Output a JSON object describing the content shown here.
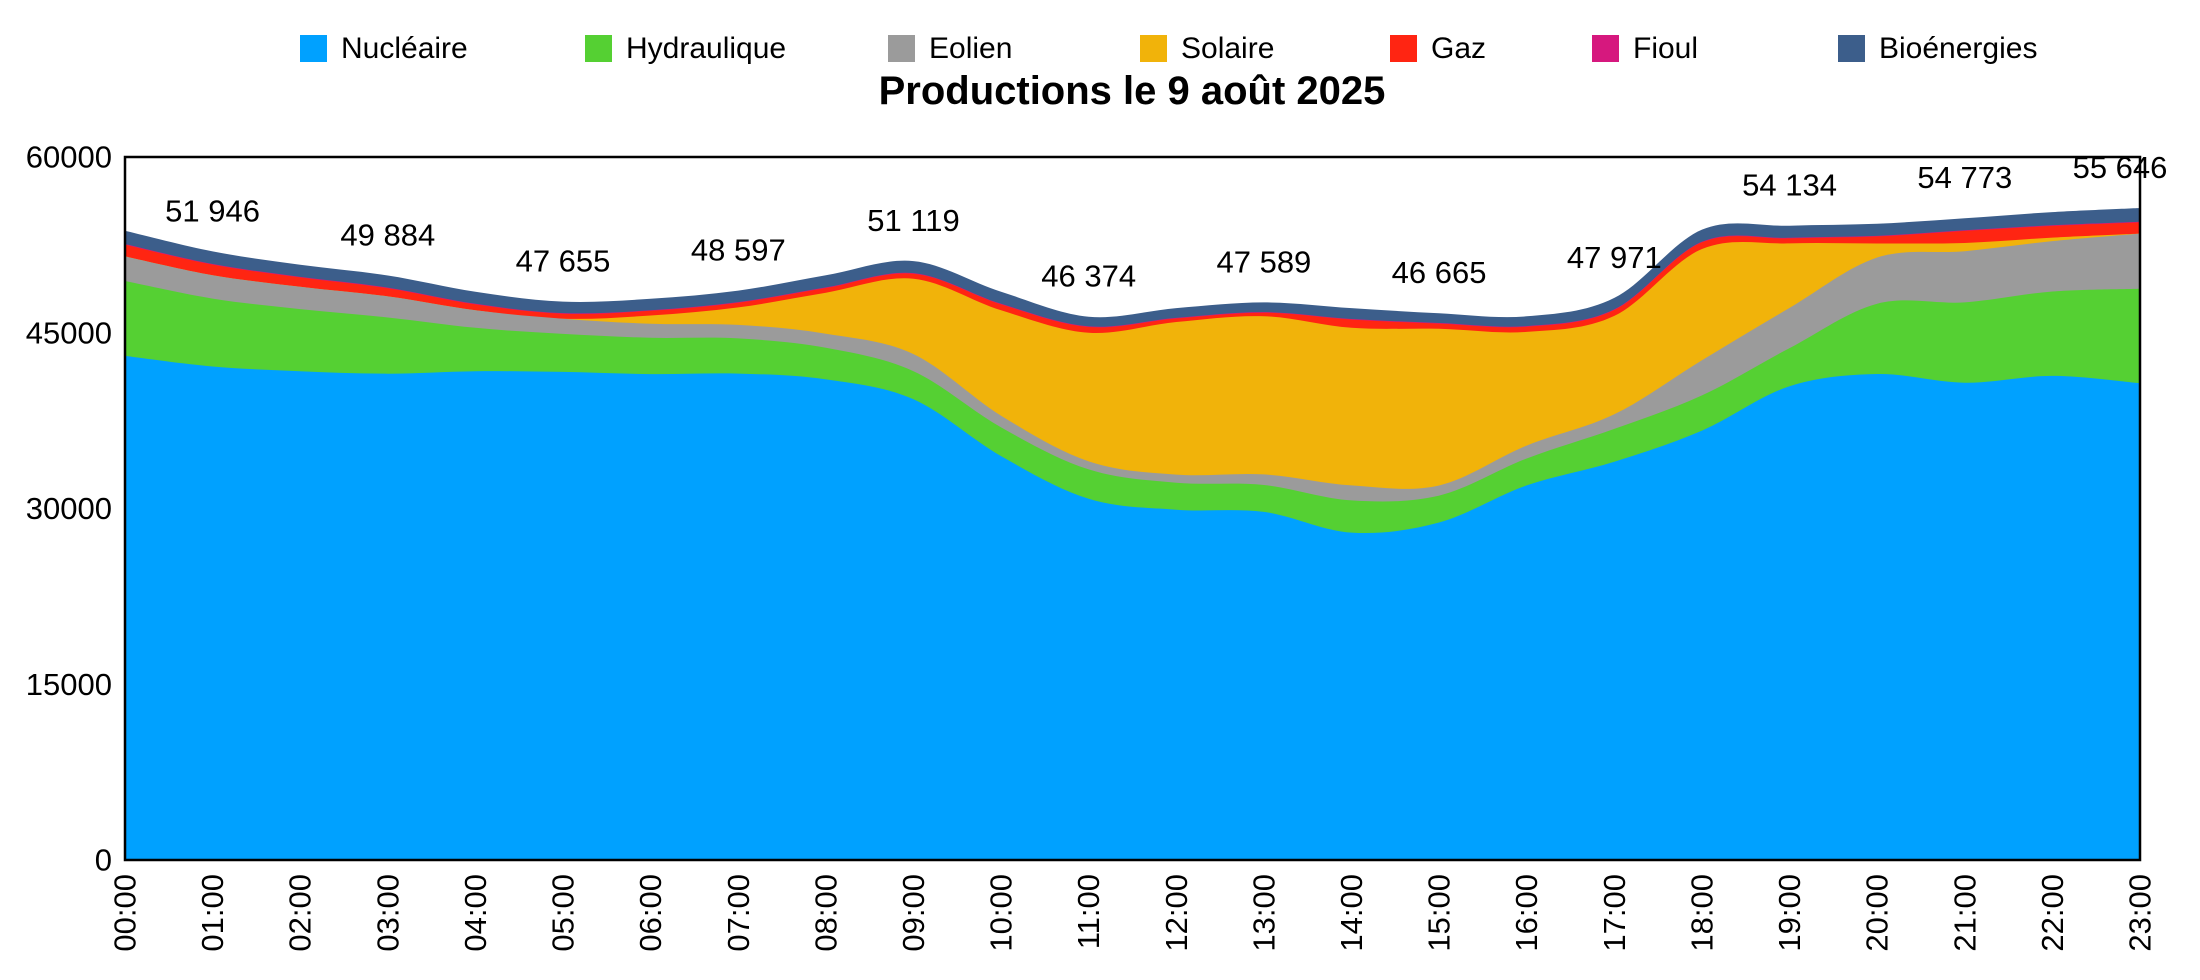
{
  "chart_data": {
    "type": "area",
    "stacked": true,
    "title": "Productions le 9 août 2025",
    "x_categories": [
      "00:00",
      "01:00",
      "02:00",
      "03:00",
      "04:00",
      "05:00",
      "06:00",
      "07:00",
      "08:00",
      "09:00",
      "10:00",
      "11:00",
      "12:00",
      "13:00",
      "14:00",
      "15:00",
      "16:00",
      "17:00",
      "18:00",
      "19:00",
      "20:00",
      "21:00",
      "22:00",
      "23:00"
    ],
    "y_ticks": [
      0,
      15000,
      30000,
      45000,
      60000
    ],
    "y_range": [
      0,
      60000
    ],
    "grid": false,
    "legend_position": "top",
    "series": [
      {
        "name": "Nucléaire",
        "color": "#00A1FF",
        "values": [
          43020,
          42116,
          41720,
          41504,
          41720,
          41655,
          41470,
          41517,
          41020,
          39319,
          34470,
          30834,
          29900,
          29709,
          27940,
          28805,
          31970,
          33991,
          36650,
          40434,
          41480,
          40733,
          41320,
          40696
        ]
      },
      {
        "name": "Hydraulique",
        "color": "#55D033",
        "values": [
          6400,
          5800,
          5300,
          4800,
          3700,
          3250,
          3100,
          3000,
          2700,
          2400,
          2450,
          2500,
          2300,
          2300,
          2750,
          2300,
          2300,
          2800,
          3000,
          3260,
          6000,
          6860,
          7200,
          8060
        ]
      },
      {
        "name": "Eolien",
        "color": "#9B9B9B",
        "values": [
          2100,
          2000,
          1900,
          1800,
          1500,
          1290,
          1200,
          1150,
          1200,
          1460,
          1000,
          690,
          690,
          900,
          1280,
          860,
          1100,
          1250,
          3000,
          3430,
          3940,
          4370,
          4300,
          4710
        ]
      },
      {
        "name": "Solaire",
        "color": "#F1B30A",
        "values": [
          0,
          0,
          0,
          0,
          0,
          0,
          700,
          1500,
          3500,
          6430,
          9000,
          10970,
          13030,
          13500,
          13450,
          13370,
          9700,
          8400,
          9500,
          5500,
          1200,
          700,
          300,
          0
        ]
      },
      {
        "name": "Gaz",
        "color": "#FF2512",
        "values": [
          1000,
          900,
          800,
          700,
          500,
          430,
          400,
          400,
          400,
          430,
          500,
          500,
          300,
          300,
          700,
          450,
          450,
          500,
          570,
          430,
          600,
          1030,
          1000,
          950
        ]
      },
      {
        "name": "Fioul",
        "color": "#D6187E",
        "values": [
          50,
          50,
          50,
          50,
          50,
          50,
          50,
          50,
          50,
          50,
          50,
          50,
          50,
          50,
          50,
          50,
          50,
          50,
          50,
          50,
          50,
          50,
          50,
          50
        ]
      },
      {
        "name": "Bioénergies",
        "color": "#3C5E8B",
        "values": [
          1130,
          1080,
          1030,
          1030,
          1030,
          980,
          980,
          980,
          1030,
          1030,
          1030,
          830,
          830,
          830,
          930,
          830,
          830,
          980,
          1030,
          1030,
          1030,
          1030,
          1130,
          1180
        ]
      }
    ],
    "total_labels": [
      {
        "hour": "01:00",
        "value": 51946
      },
      {
        "hour": "03:00",
        "value": 49884
      },
      {
        "hour": "05:00",
        "value": 47655
      },
      {
        "hour": "07:00",
        "value": 48597
      },
      {
        "hour": "09:00",
        "value": 51119
      },
      {
        "hour": "11:00",
        "value": 46374
      },
      {
        "hour": "13:00",
        "value": 47589
      },
      {
        "hour": "15:00",
        "value": 46665
      },
      {
        "hour": "17:00",
        "value": 47971
      },
      {
        "hour": "19:00",
        "value": 54134
      },
      {
        "hour": "21:00",
        "value": 54773
      },
      {
        "hour": "23:00",
        "value": 55646
      }
    ]
  }
}
